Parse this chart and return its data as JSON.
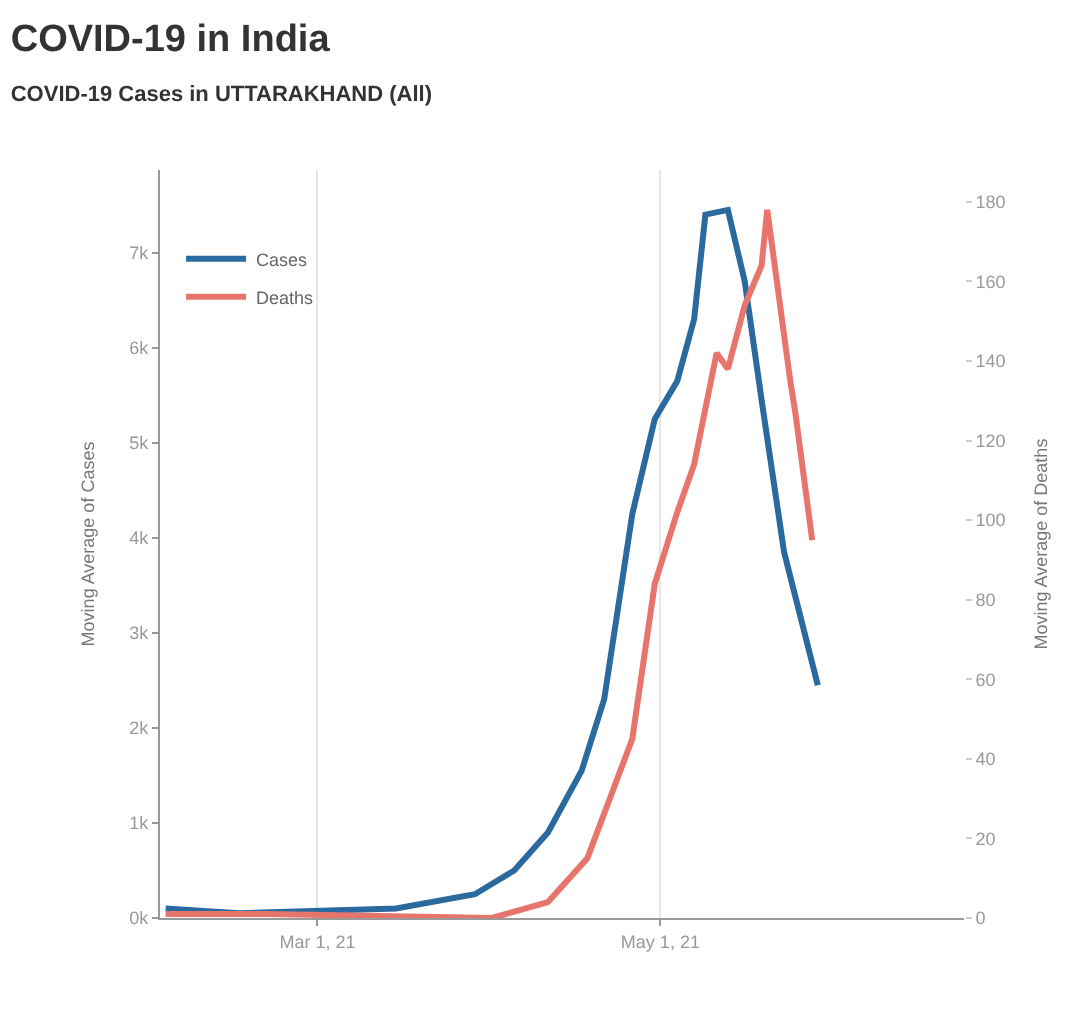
{
  "chart_data": {
    "type": "line",
    "title": "COVID-19 in India",
    "subtitle": "COVID-19 Cases in UTTARAKHAND (All)",
    "ylabel": "Moving Average of Cases",
    "y2label": "Moving Average of Deaths",
    "xlim": [
      "2021-02-01",
      "2021-06-24"
    ],
    "xticks": [
      {
        "value": "2021-03-01",
        "label": "Mar 1, 21"
      },
      {
        "value": "2021-05-01",
        "label": "May 1, 21"
      }
    ],
    "ylim": [
      0,
      7870
    ],
    "yticks": [
      {
        "value": 0,
        "label": "0k"
      },
      {
        "value": 1000,
        "label": "1k"
      },
      {
        "value": 2000,
        "label": "2k"
      },
      {
        "value": 3000,
        "label": "3k"
      },
      {
        "value": 4000,
        "label": "4k"
      },
      {
        "value": 5000,
        "label": "5k"
      },
      {
        "value": 6000,
        "label": "6k"
      },
      {
        "value": 7000,
        "label": "7k"
      }
    ],
    "y2lim": [
      0,
      188
    ],
    "y2ticks": [
      0,
      20,
      40,
      60,
      80,
      100,
      120,
      140,
      160,
      180
    ],
    "grid": "x",
    "legend": "top left",
    "marker": "none",
    "line_style": "solid",
    "series": [
      {
        "name": "Cases",
        "color": "#2a6a9e",
        "x": [
          "2021-02-02",
          "2021-02-15",
          "2021-03-15",
          "2021-03-29",
          "2021-04-05",
          "2021-04-11",
          "2021-04-17",
          "2021-04-21",
          "2021-04-26",
          "2021-04-30",
          "2021-05-04",
          "2021-05-07",
          "2021-05-09",
          "2021-05-13",
          "2021-05-16",
          "2021-05-19",
          "2021-05-23",
          "2021-05-29"
        ],
        "values": [
          100,
          50,
          100,
          250,
          500,
          900,
          1550,
          2300,
          4250,
          5250,
          5650,
          6300,
          7400,
          7450,
          6700,
          5450,
          3850,
          2450
        ]
      },
      {
        "name": "Deaths",
        "color": "#e8756b",
        "axis": "y2",
        "x": [
          "2021-02-02",
          "2021-02-20",
          "2021-04-01",
          "2021-04-11",
          "2021-04-18",
          "2021-04-26",
          "2021-04-30",
          "2021-05-04",
          "2021-05-07",
          "2021-05-11",
          "2021-05-13",
          "2021-05-16",
          "2021-05-19",
          "2021-05-20",
          "2021-05-24",
          "2021-05-25",
          "2021-05-28"
        ],
        "values": [
          1,
          1,
          0,
          4,
          15,
          45,
          84,
          102,
          114,
          142,
          138,
          154,
          164,
          178,
          136,
          127,
          95
        ]
      }
    ]
  }
}
